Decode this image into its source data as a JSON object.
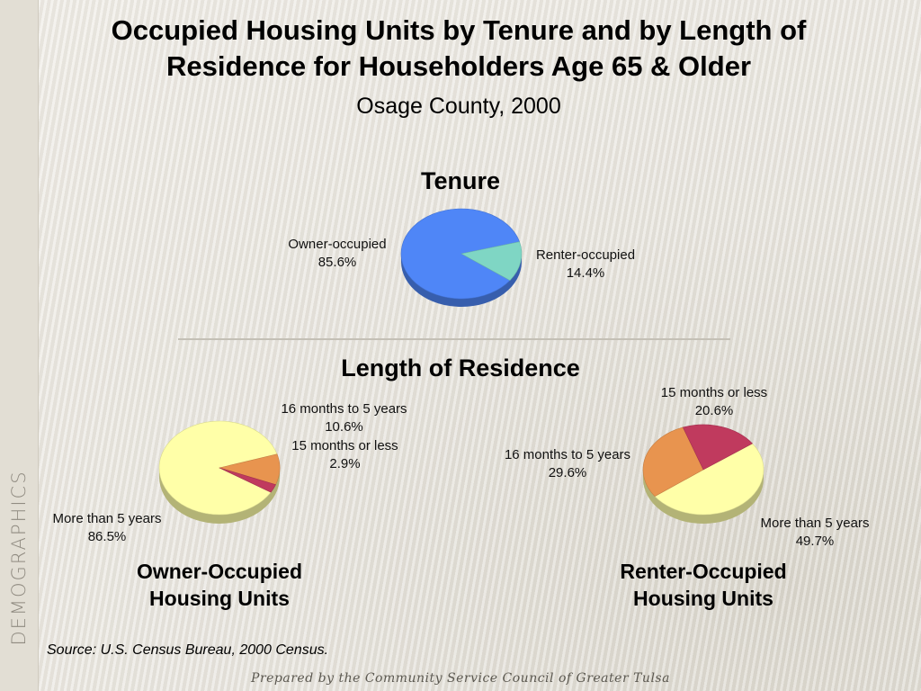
{
  "sidebar": {
    "label": "DEMOGRAPHICS"
  },
  "title_line1": "Occupied Housing Units by Tenure and  by Length of",
  "title_line2": "Residence for Householders Age 65 & Older",
  "subtitle": "Osage County, 2000",
  "tenure_heading": "Tenure",
  "length_heading": "Length of Residence",
  "source": "Source:  U.S. Census Bureau, 2000 Census.",
  "footer": "Prepared by the Community Service Council of Greater Tulsa",
  "colors": {
    "owner_occupied": "#4f86f7",
    "renter_occupied": "#7fd6c4",
    "more_than_5_years": "#ffffa8",
    "sixteen_months_to_5_years": "#e8944f",
    "fifteen_months_or_less": "#c03a5e"
  },
  "chart_data": [
    {
      "type": "pie",
      "title": "Tenure",
      "labels": [
        "Owner-occupied",
        "Renter-occupied"
      ],
      "values": [
        85.6,
        14.4
      ],
      "value_labels": [
        "85.6%",
        "14.4%"
      ]
    },
    {
      "type": "pie",
      "title": "Owner-Occupied Housing Units",
      "labels": [
        "More than 5 years",
        "16 months to 5 years",
        "15 months or less"
      ],
      "values": [
        86.5,
        10.6,
        2.9
      ],
      "value_labels": [
        "86.5%",
        "10.6%",
        "2.9%"
      ]
    },
    {
      "type": "pie",
      "title": "Renter-Occupied Housing Units",
      "labels": [
        "More than 5 years",
        "16 months to 5 years",
        "15 months or less"
      ],
      "values": [
        49.7,
        29.6,
        20.6
      ],
      "value_labels": [
        "49.7%",
        "29.6%",
        "20.6%"
      ]
    }
  ],
  "captions": {
    "owner_line1": "Owner-Occupied",
    "owner_line2": "Housing Units",
    "renter_line1": "Renter-Occupied",
    "renter_line2": "Housing Units"
  }
}
